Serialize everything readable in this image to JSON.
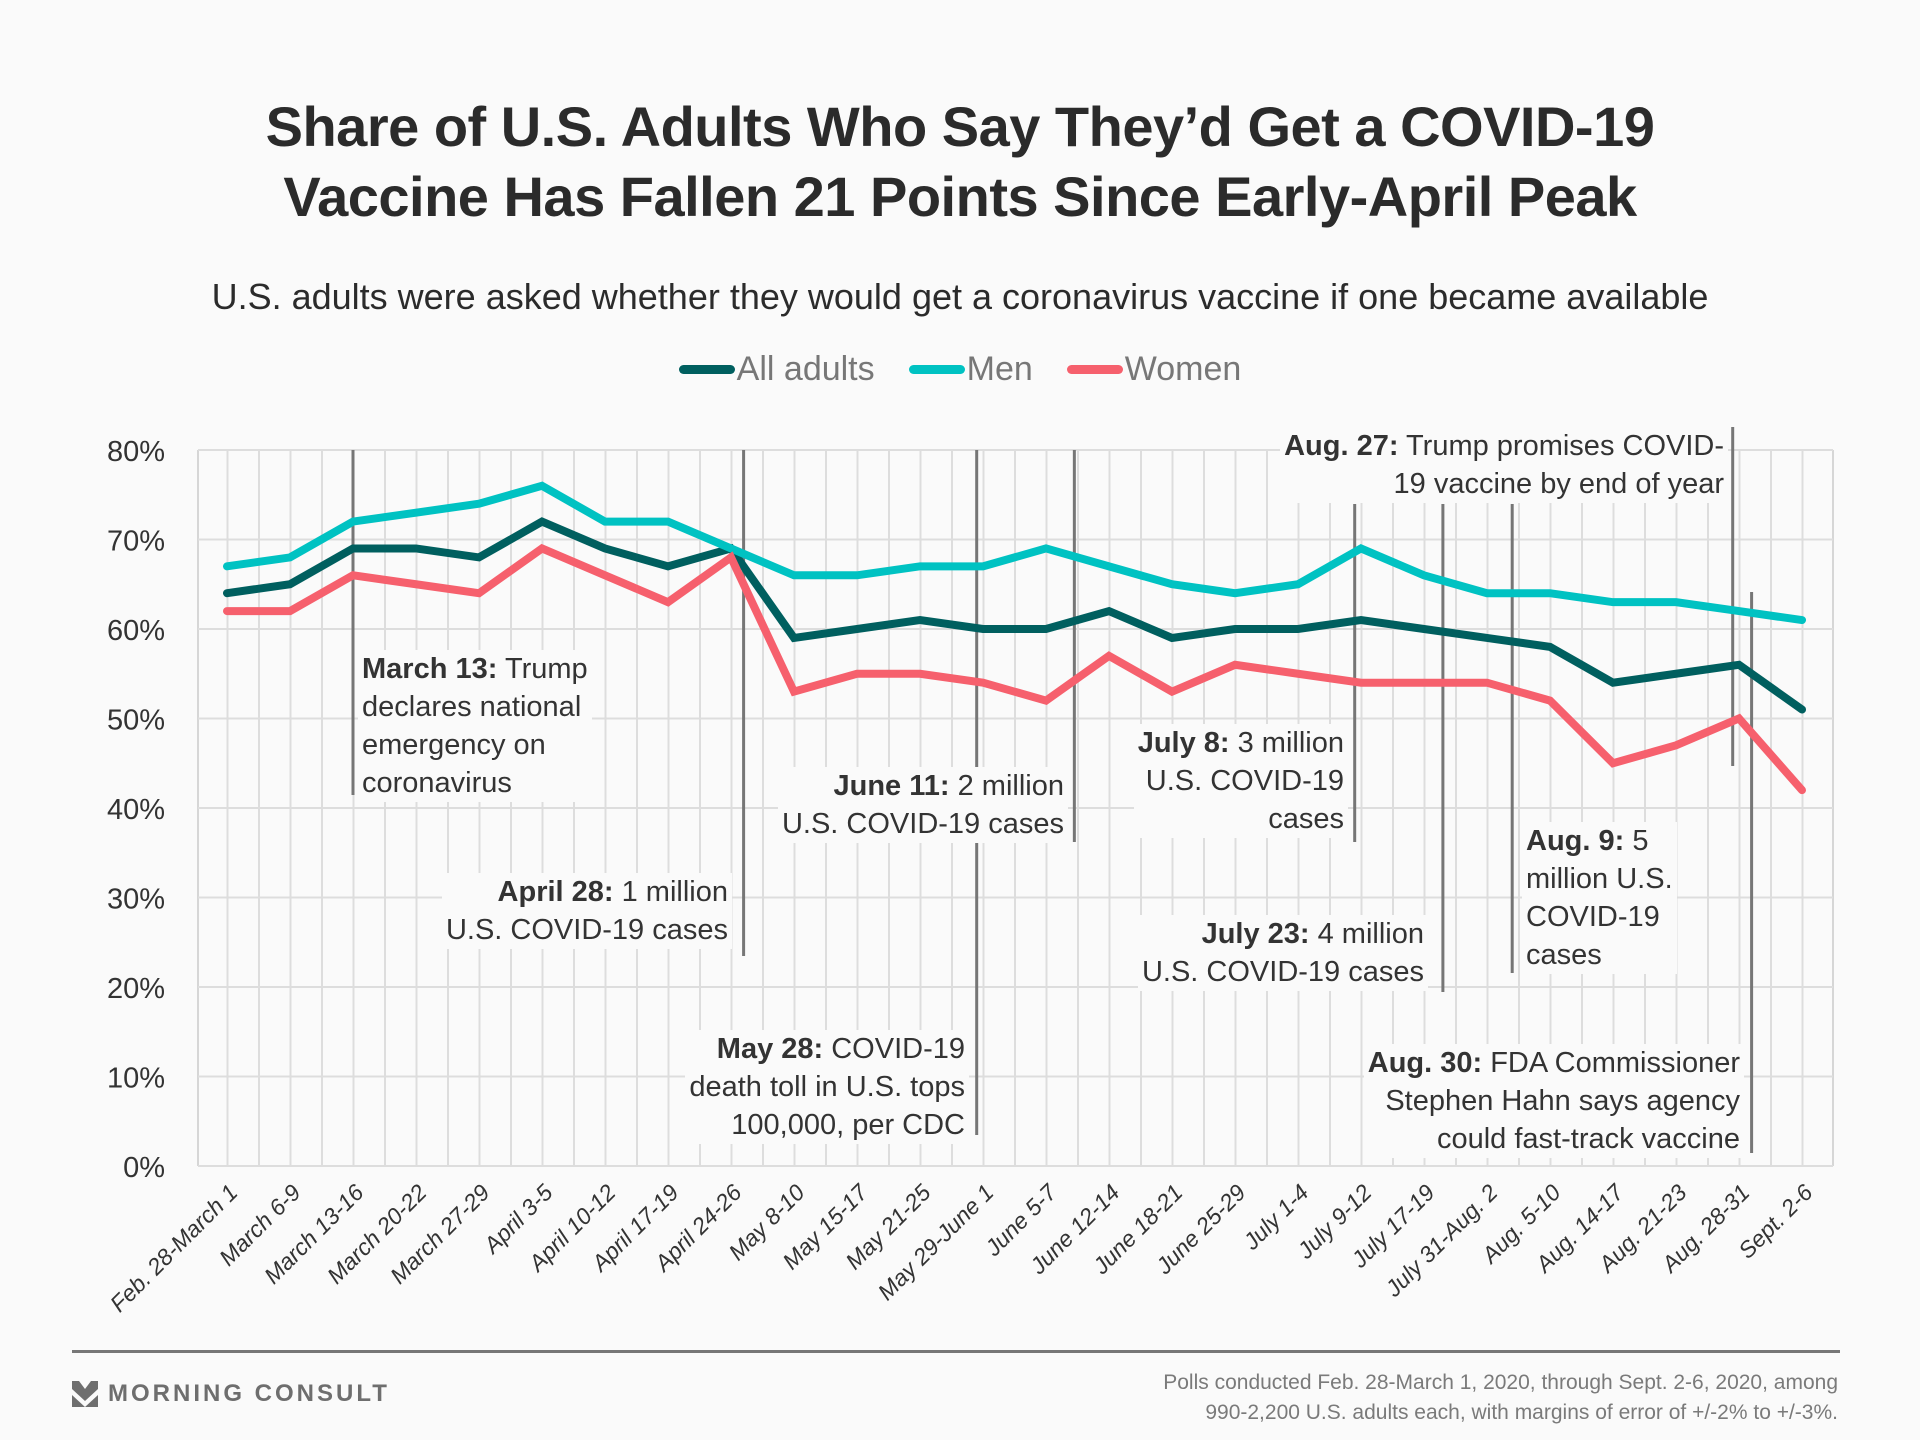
{
  "title_lines": [
    "Share of U.S. Adults Who Say They’d Get a COVID-19",
    "Vaccine Has Fallen 21 Points Since Early-April Peak"
  ],
  "subtitle": "U.S. adults were asked whether they would get a coronavirus vaccine if one became available",
  "legend": [
    {
      "label": "All adults",
      "color": "#005f5f"
    },
    {
      "label": "Men",
      "color": "#00c2c2"
    },
    {
      "label": "Women",
      "color": "#f6606d"
    }
  ],
  "chart_data": {
    "type": "line",
    "title": "Share of U.S. Adults Who Say They’d Get a COVID-19 Vaccine Has Fallen 21 Points Since Early-April Peak",
    "subtitle": "U.S. adults were asked whether they would get a coronavirus vaccine if one became available",
    "xlabel": "",
    "ylabel": "",
    "ylim": [
      0,
      80
    ],
    "yticks": [
      0,
      10,
      20,
      30,
      40,
      50,
      60,
      70,
      80
    ],
    "ytick_labels": [
      "0%",
      "10%",
      "20%",
      "30%",
      "40%",
      "50%",
      "60%",
      "70%",
      "80%"
    ],
    "grid": true,
    "legend_position": "top-center",
    "categories": [
      "Feb. 28-March 1",
      "March 6-9",
      "March 13-16",
      "March 20-22",
      "March 27-29",
      "April 3-5",
      "April 10-12",
      "April 17-19",
      "April 24-26",
      "May 8-10",
      "May 15-17",
      "May 21-25",
      "May 29-June 1",
      "June 5-7",
      "June 12-14",
      "June 18-21",
      "June 25-29",
      "July 1-4",
      "July 9-12",
      "July 17-19",
      "July 31-Aug. 2",
      "Aug. 5-10",
      "Aug. 14-17",
      "Aug. 21-23",
      "Aug. 28-31",
      "Sept. 2-6"
    ],
    "series": [
      {
        "name": "All adults",
        "color": "#005f5f",
        "values": [
          64,
          65,
          69,
          69,
          68,
          72,
          69,
          67,
          69,
          59,
          60,
          61,
          60,
          60,
          62,
          59,
          60,
          60,
          61,
          60,
          59,
          58,
          54,
          55,
          56,
          51
        ]
      },
      {
        "name": "Men",
        "color": "#00c2c2",
        "values": [
          67,
          68,
          72,
          73,
          74,
          76,
          72,
          72,
          69,
          66,
          66,
          67,
          67,
          69,
          67,
          65,
          64,
          65,
          69,
          66,
          64,
          64,
          63,
          63,
          62,
          61
        ]
      },
      {
        "name": "Women",
        "color": "#f6606d",
        "values": [
          62,
          62,
          66,
          65,
          64,
          69,
          66,
          63,
          68,
          53,
          55,
          55,
          54,
          52,
          57,
          53,
          56,
          55,
          54,
          54,
          54,
          52,
          45,
          47,
          50,
          42
        ]
      }
    ],
    "annotations": [
      {
        "id": "march13",
        "date": "March 13:",
        "text": [
          "Trump",
          "declares national",
          "emergency on",
          "coronavirus"
        ],
        "x_index": 2.0
      },
      {
        "id": "april28",
        "date": "April 28:",
        "text": [
          "1 million",
          "U.S. COVID-19 cases"
        ],
        "x_index": 8.2
      },
      {
        "id": "may28",
        "date": "May 28:",
        "text": [
          "COVID-19",
          "death toll in U.S. tops",
          "100,000, per CDC"
        ],
        "x_index": 11.9
      },
      {
        "id": "june11",
        "date": "June 11:",
        "text": [
          "2 million",
          "U.S. COVID-19 cases"
        ],
        "x_index": 13.45
      },
      {
        "id": "july8",
        "date": "July 8:",
        "text": [
          "3 million",
          "U.S. COVID-19",
          "cases"
        ],
        "x_index": 17.9
      },
      {
        "id": "july23",
        "date": "July 23:",
        "text": [
          "4 million",
          "U.S. COVID-19 cases"
        ],
        "x_index": 19.3
      },
      {
        "id": "aug9",
        "date": "Aug. 9:",
        "text": [
          "5",
          "million U.S.",
          "COVID-19",
          "cases"
        ],
        "x_index": 20.4
      },
      {
        "id": "aug27",
        "date": "Aug. 27:",
        "text": [
          "Trump promises COVID-",
          "19 vaccine by end of year"
        ],
        "x_index": 23.9
      },
      {
        "id": "aug30",
        "date": "Aug. 30:",
        "text": [
          "FDA Commissioner",
          "Stephen Hahn says agency",
          "could fast-track vaccine"
        ],
        "x_index": 24.2
      }
    ]
  },
  "footer": {
    "logo_text": "MORNING CONSULT",
    "source_lines": [
      "Polls conducted Feb. 28-March 1, 2020, through Sept. 2-6, 2020, among",
      "990-2,200 U.S. adults each, with margins of error of +/-2% to +/-3%."
    ]
  }
}
